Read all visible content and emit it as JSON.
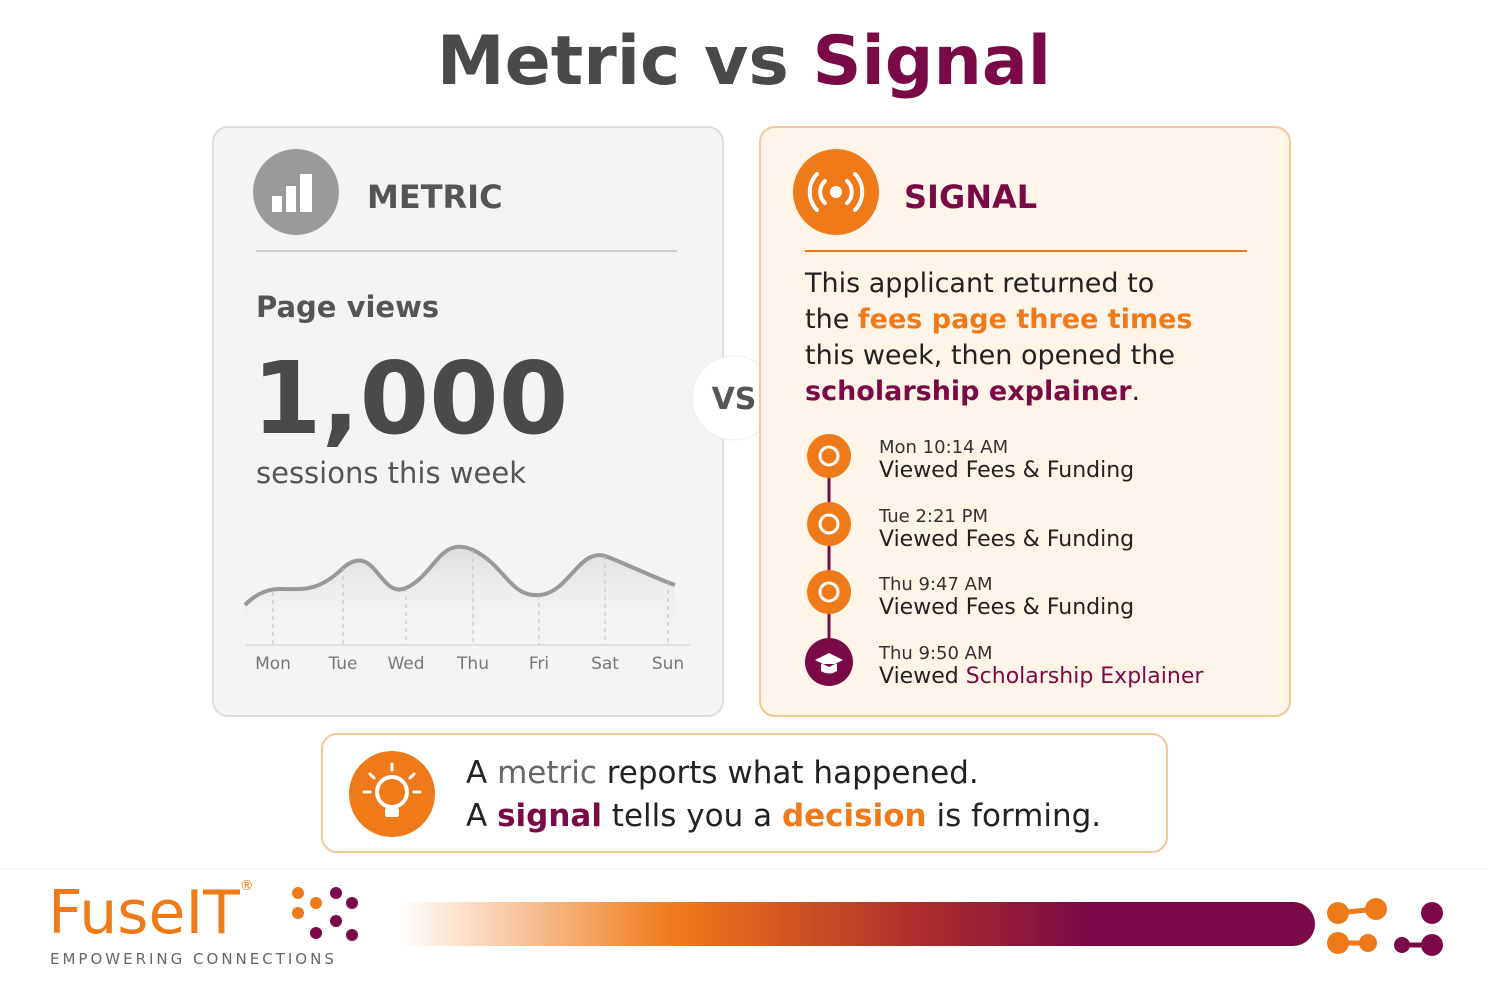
{
  "title": {
    "lead": "Metric vs",
    "accent": "Signal"
  },
  "metric": {
    "heading": "METRIC",
    "label": "Page views",
    "value": "1,000",
    "caption": "sessions this week",
    "days": [
      "Mon",
      "Tue",
      "Wed",
      "Thu",
      "Fri",
      "Sat",
      "Sun"
    ]
  },
  "vs": "VS",
  "signal": {
    "heading": "SIGNAL",
    "description": [
      "This applicant returned to the ",
      "fees page three times",
      " this week, then opened the ",
      "scholarship explainer",
      "."
    ],
    "events": [
      {
        "time": "Mon 10:14 AM",
        "action": [
          "Viewed Fees & Funding"
        ]
      },
      {
        "time": "Tue 2:21 PM",
        "action": [
          "Viewed Fees & Funding"
        ]
      },
      {
        "time": "Thu 9:47 AM",
        "action": [
          "Viewed Fees & Funding"
        ]
      },
      {
        "time": "Thu 9:50 AM",
        "action": [
          "Viewed ",
          "Scholarship Explainer"
        ]
      }
    ]
  },
  "callout": {
    "line1": [
      "A ",
      "metric",
      " reports what happened."
    ],
    "line2": [
      "A ",
      "signal",
      " tells you a ",
      "decision",
      " is forming."
    ]
  },
  "footer": {
    "brand_a": "Fuse",
    "brand_b": "IT",
    "registered": "®",
    "tagline": "EMPOWERING CONNECTIONS"
  }
}
